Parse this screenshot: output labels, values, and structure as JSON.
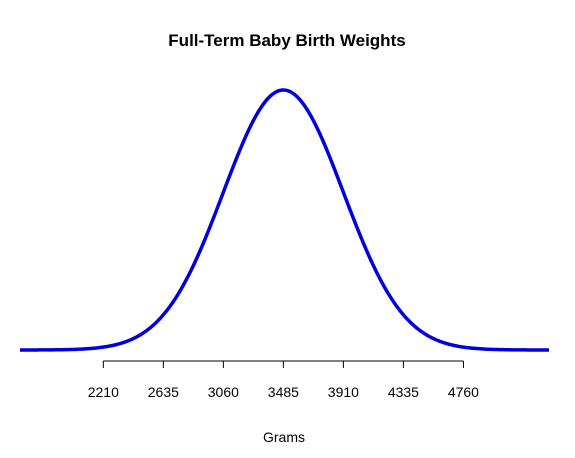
{
  "chart_data": {
    "type": "line",
    "title": "Full-Term Baby Birth Weights",
    "xlabel": "Grams",
    "ylabel": "",
    "distribution": "normal",
    "mean": 3485,
    "sd": 425,
    "x_ticks": [
      2210,
      2635,
      3060,
      3485,
      3910,
      4335,
      4760
    ],
    "xlim": [
      1620,
      5366
    ],
    "y_axis_shown": false,
    "grid": false,
    "legend": "none",
    "series": [
      {
        "color": "#0000dd"
      }
    ]
  }
}
